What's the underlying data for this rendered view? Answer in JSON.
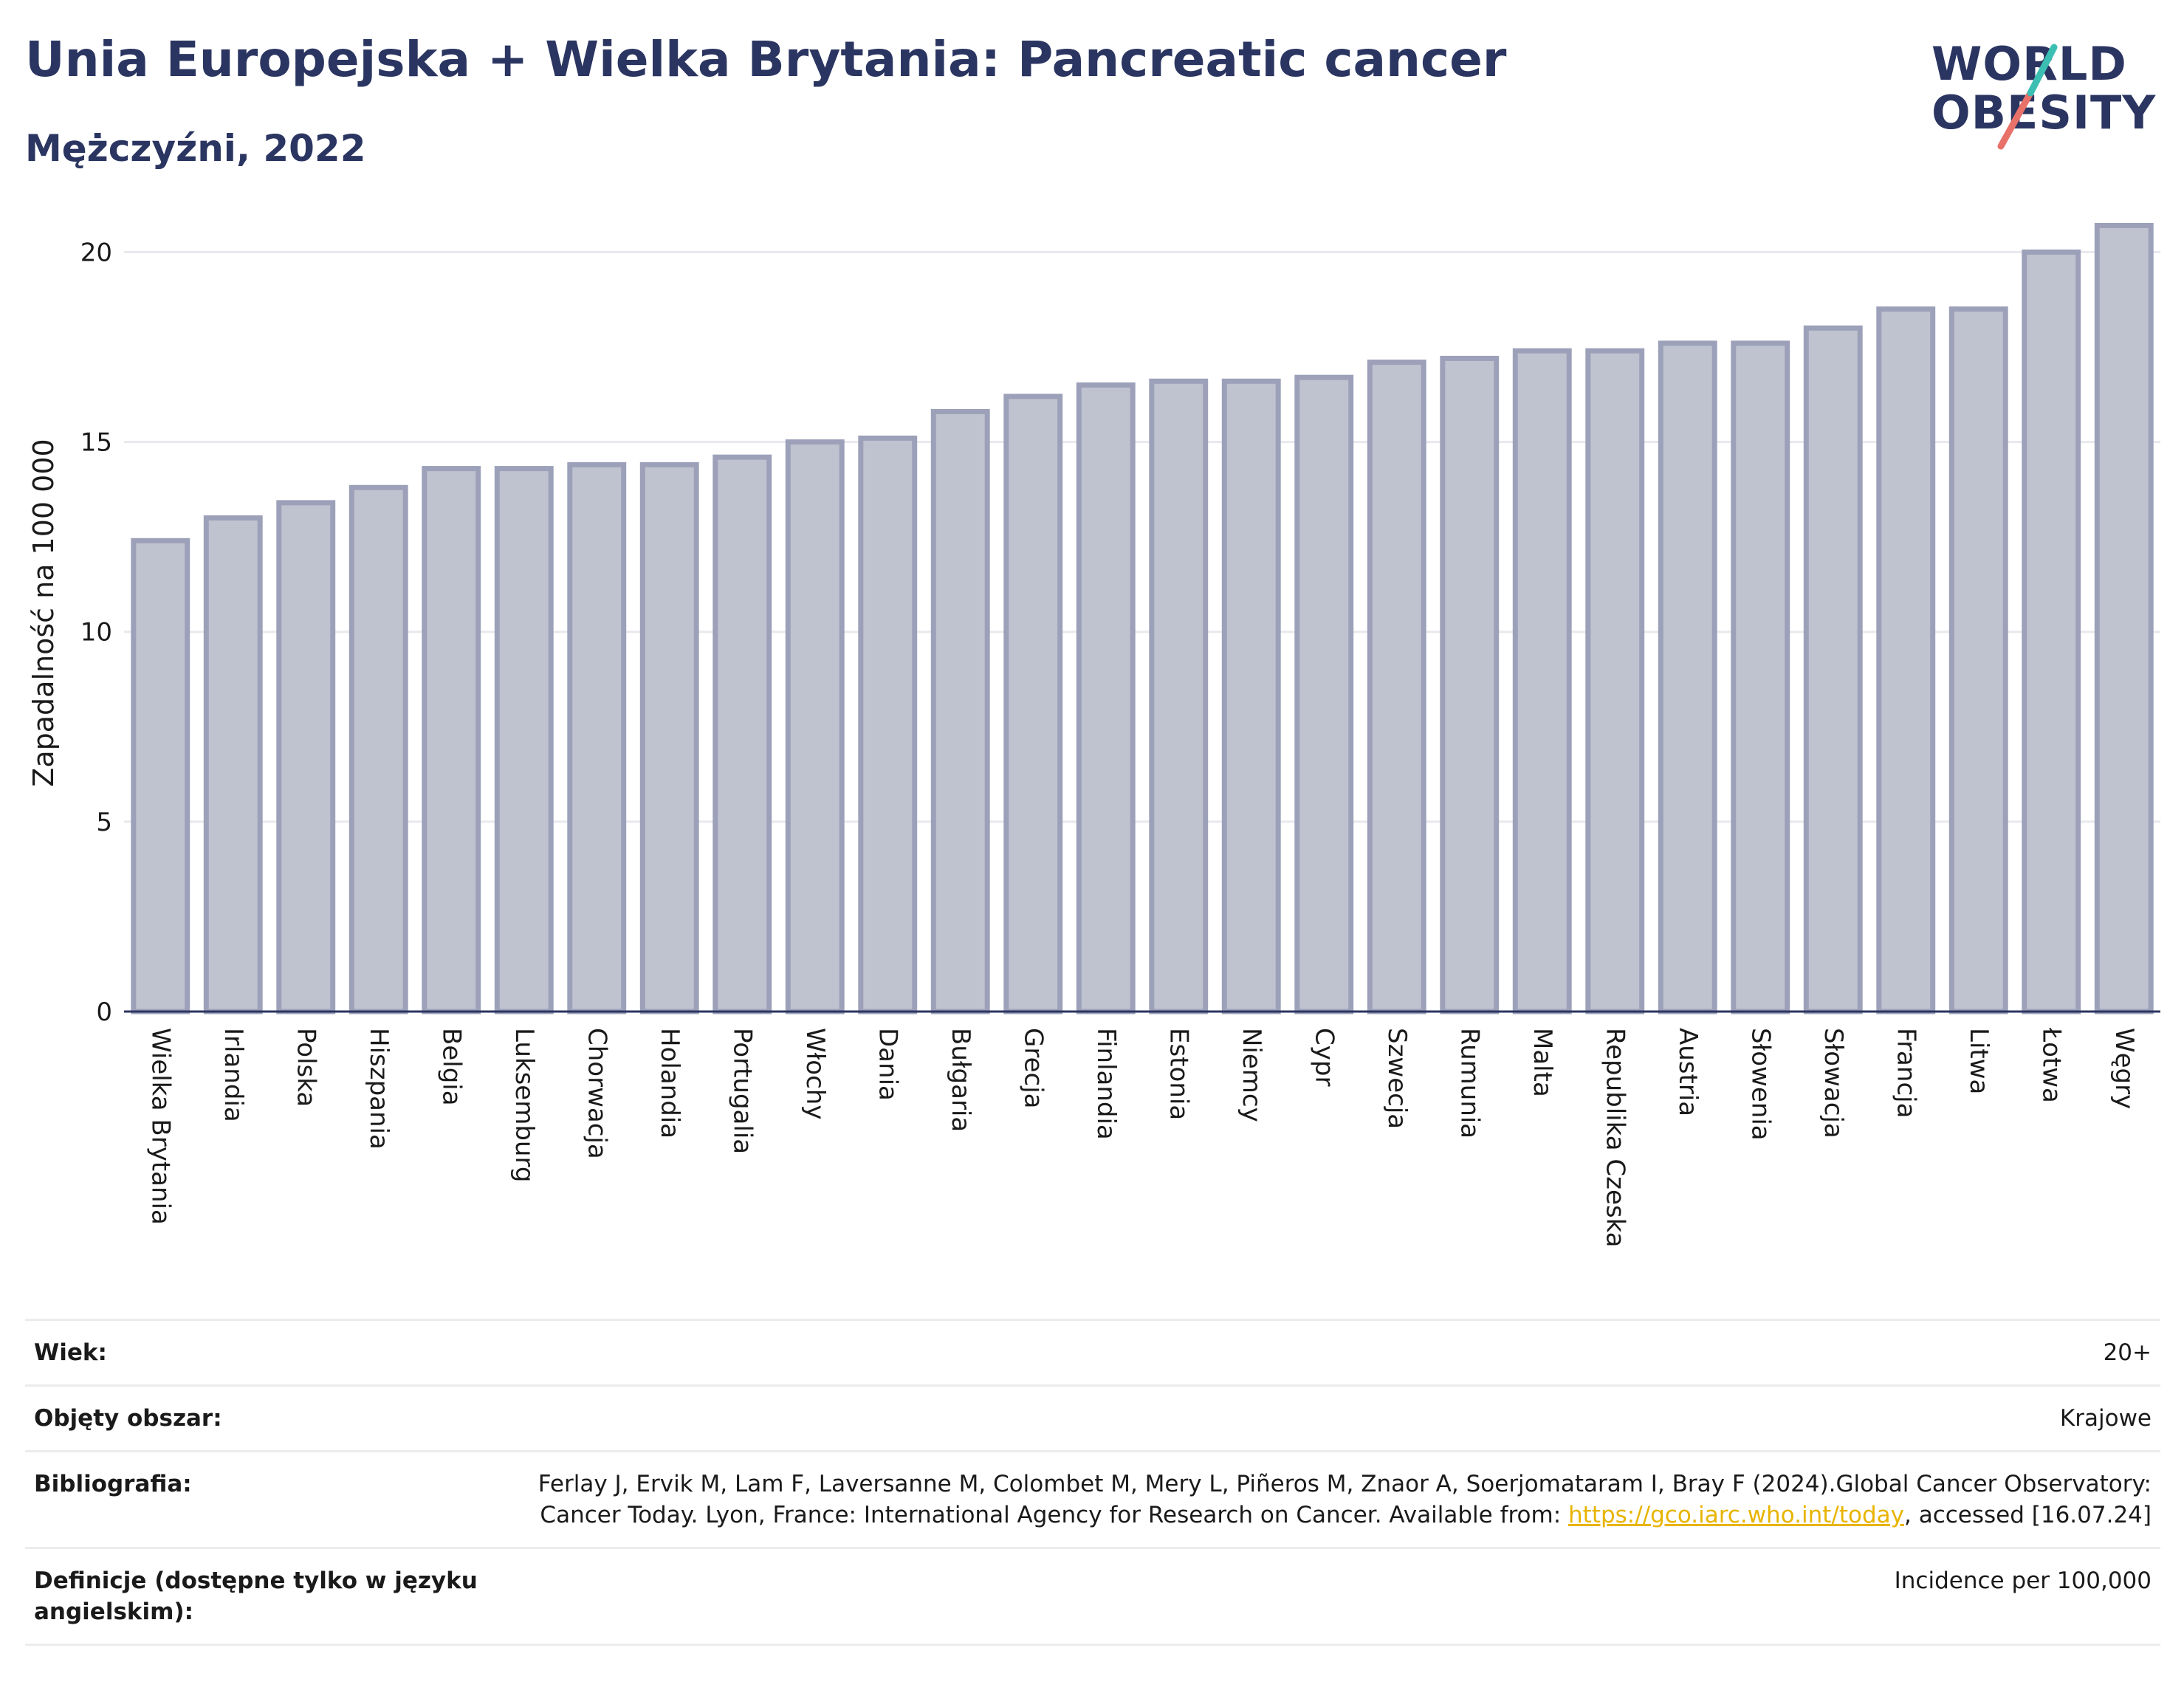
{
  "header": {
    "title": "Unia Europejska + Wielka Brytania: Pancreatic cancer",
    "subtitle": "Mężczyźni, 2022",
    "logo_line1": "WORLD",
    "logo_line2": "OBESITY"
  },
  "colors": {
    "title": "#2b3561",
    "bar_fill": "#bfc3d0",
    "bar_stroke": "#9ca1b9",
    "axis": "#2b3561",
    "grid": "#e8e8ee",
    "logo_teal": "#3bbfb2",
    "logo_coral": "#e8716a",
    "link": "#e8b400"
  },
  "chart_data": {
    "type": "bar",
    "title": "Unia Europejska + Wielka Brytania: Pancreatic cancer",
    "subtitle": "Mężczyźni, 2022",
    "xlabel": "",
    "ylabel": "Zapadalność na 100 000",
    "ylim": [
      0,
      21
    ],
    "yticks": [
      0,
      5,
      10,
      15,
      20
    ],
    "grid": true,
    "legend": "none",
    "categories": [
      "Wielka Brytania",
      "Irlandia",
      "Polska",
      "Hiszpania",
      "Belgia",
      "Luksemburg",
      "Chorwacja",
      "Holandia",
      "Portugalia",
      "Włochy",
      "Dania",
      "Bułgaria",
      "Grecja",
      "Finlandia",
      "Estonia",
      "Niemcy",
      "Cypr",
      "Szwecja",
      "Rumunia",
      "Malta",
      "Republika Czeska",
      "Austria",
      "Słowenia",
      "Słowacja",
      "Francja",
      "Litwa",
      "Łotwa",
      "Węgry"
    ],
    "values": [
      12.4,
      13.0,
      13.4,
      13.8,
      14.3,
      14.3,
      14.4,
      14.4,
      14.6,
      15.0,
      15.1,
      15.8,
      16.2,
      16.5,
      16.6,
      16.6,
      16.7,
      17.1,
      17.2,
      17.4,
      17.4,
      17.6,
      17.6,
      18.0,
      18.5,
      18.5,
      20.0,
      20.7
    ]
  },
  "info": {
    "rows": [
      {
        "label": "Wiek:",
        "value": "20+"
      },
      {
        "label": "Objęty obszar:",
        "value": "Krajowe"
      },
      {
        "label": "Bibliografia:",
        "value_before": "Ferlay J, Ervik M, Lam F, Laversanne M, Colombet M, Mery L, Piñeros M, Znaor A, Soerjomataram I, Bray F (2024).Global Cancer Observatory: Cancer Today. Lyon, France: International Agency for Research on Cancer. Available from: ",
        "link": "https://gco.iarc.who.int/today",
        "value_after": ", accessed [16.07.24]"
      },
      {
        "label": "Definicje (dostępne tylko w języku angielskim):",
        "value": "Incidence per 100,000"
      }
    ]
  }
}
